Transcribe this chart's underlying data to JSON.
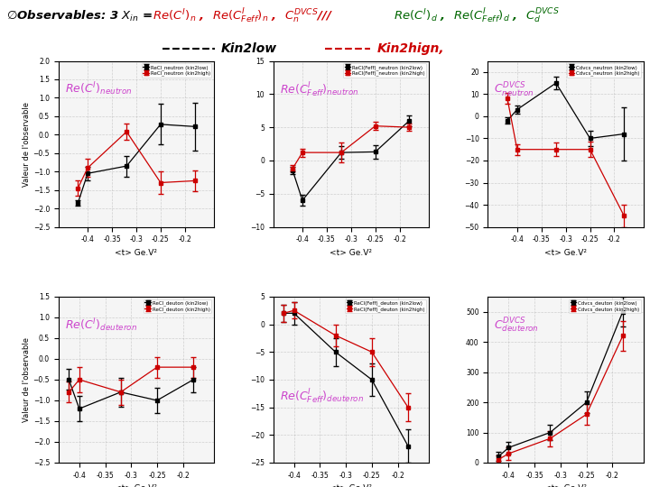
{
  "bg_color": "#ffffff",
  "ylabel": "Valeur de l'observable",
  "xlabel": "<t> Ge.V²",
  "neutron_x": [
    -0.42,
    -0.4,
    -0.32,
    -0.25,
    -0.18
  ],
  "reCi_n_low_y": [
    -1.85,
    -1.05,
    -0.85,
    0.28,
    0.22
  ],
  "reCi_n_low_ye": [
    0.08,
    0.18,
    0.28,
    0.55,
    0.65
  ],
  "reCi_n_high_y": [
    -1.45,
    -0.9,
    0.08,
    -1.3,
    -1.25
  ],
  "reCi_n_high_ye": [
    0.2,
    0.25,
    0.22,
    0.3,
    0.28
  ],
  "reCiFeff_n_low_y": [
    -1.5,
    -6.0,
    1.2,
    1.3,
    6.0
  ],
  "reCiFeff_n_low_ye": [
    0.5,
    0.8,
    1.0,
    1.0,
    0.8
  ],
  "reCiFeff_n_high_y": [
    -1.2,
    1.2,
    1.2,
    5.2,
    5.0
  ],
  "reCiFeff_n_high_ye": [
    0.5,
    0.6,
    1.5,
    0.6,
    0.5
  ],
  "cdvcs_n_low_y": [
    -2.0,
    3.0,
    15.0,
    -10.0,
    -8.0
  ],
  "cdvcs_n_low_ye": [
    1.5,
    2.0,
    3.0,
    3.5,
    12.0
  ],
  "cdvcs_n_high_y": [
    8.0,
    -15.0,
    -15.0,
    -15.0,
    -45.0
  ],
  "cdvcs_n_high_ye": [
    2.5,
    2.5,
    3.0,
    3.5,
    5.0
  ],
  "deuteron_x": [
    -0.42,
    -0.4,
    -0.32,
    -0.25,
    -0.18
  ],
  "reCi_d_low_y": [
    -0.5,
    -1.2,
    -0.8,
    -1.0,
    -0.5
  ],
  "reCi_d_low_ye": [
    0.25,
    0.3,
    0.35,
    0.3,
    0.3
  ],
  "reCi_d_high_y": [
    -0.8,
    -0.5,
    -0.8,
    -0.2,
    -0.2
  ],
  "reCi_d_high_ye": [
    0.25,
    0.3,
    0.3,
    0.25,
    0.25
  ],
  "reCiFeff_d_low_y": [
    2.0,
    2.0,
    -5.0,
    -10.0,
    -22.0
  ],
  "reCiFeff_d_low_ye": [
    1.5,
    2.0,
    2.5,
    3.0,
    3.0
  ],
  "reCiFeff_d_high_y": [
    2.0,
    2.5,
    -2.0,
    -5.0,
    -15.0
  ],
  "reCiFeff_d_high_ye": [
    1.5,
    1.5,
    2.0,
    2.5,
    2.5
  ],
  "cdvcs_d_low_y": [
    20,
    50,
    100,
    200,
    500
  ],
  "cdvcs_d_low_ye": [
    15,
    20,
    25,
    35,
    50
  ],
  "cdvcs_d_high_y": [
    10,
    30,
    80,
    160,
    420
  ],
  "cdvcs_d_high_ye": [
    15,
    20,
    25,
    35,
    50
  ],
  "color_low": "#000000",
  "color_high": "#cc0000",
  "annot_color": "#cc44cc",
  "ylim_reCi_n": [
    -2.5,
    2.0
  ],
  "ylim_reCiFeff_n": [
    -10.0,
    15.0
  ],
  "ylim_cdvcs_n": [
    -50,
    25
  ],
  "ylim_reCi_d": [
    -2.5,
    1.5
  ],
  "ylim_reCiFeff_d": [
    -25,
    5
  ],
  "ylim_cdvcs_d": [
    0,
    550
  ],
  "xlim_n": [
    -0.46,
    -0.14
  ],
  "xlim_d": [
    -0.44,
    -0.14
  ],
  "xticks_n": [
    -0.4,
    -0.35,
    -0.3,
    -0.25,
    -0.2
  ],
  "xticks_d": [
    -0.4,
    -0.35,
    -0.3,
    -0.25,
    -0.2
  ],
  "leg_n1": [
    "ReCl_neutron (kin2low)",
    "ReCl_neutron (kin2high)"
  ],
  "leg_n2": [
    "ReCl(Feff)_neutron (kin2low)",
    "ReCl(Feff)_neutron (kin2high)"
  ],
  "leg_n3": [
    "Cdvcs_neutron (kin2low)",
    "Cdvcs_neutron (kin2high)"
  ],
  "leg_d1": [
    "ReCl_deuton (kin2low)",
    "ReCl_deuton (kin2high)"
  ],
  "leg_d2": [
    "ReCl(Feff)_deuton (kin2low)",
    "ReCl(Feff)_deuton (kin2high)"
  ],
  "leg_d3": [
    "Cdvcs_deuton (kin2low)",
    "Cdvcs_deuton (kin2high)"
  ]
}
